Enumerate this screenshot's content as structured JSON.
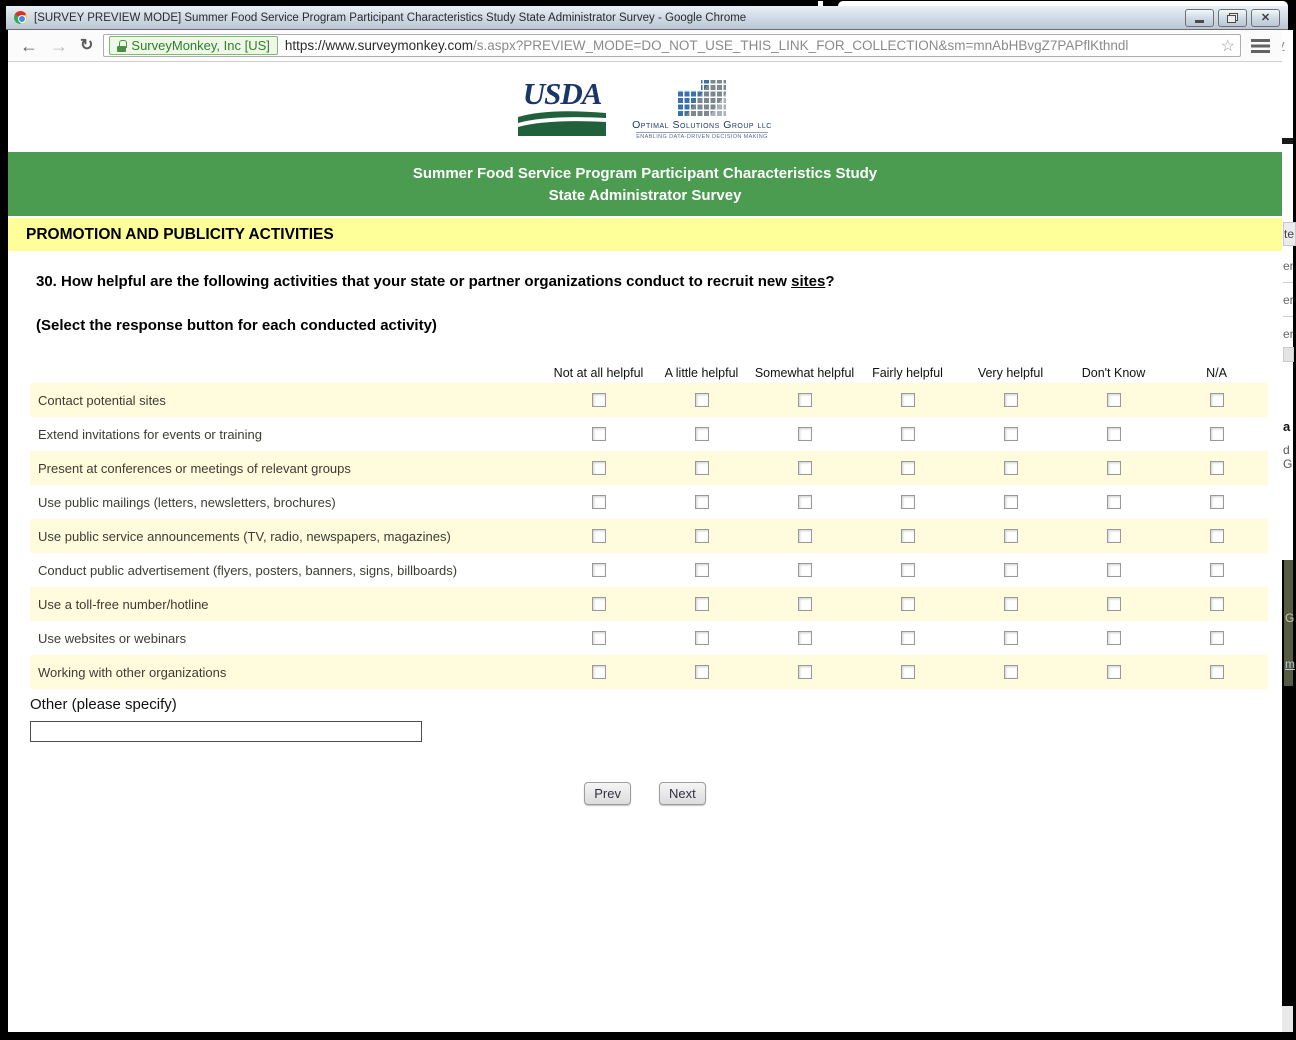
{
  "window": {
    "title": "[SURVEY PREVIEW MODE] Summer Food Service Program Participant Characteristics Study State Administrator Survey - Google Chrome"
  },
  "browser": {
    "ev_badge": "SurveyMonkey, Inc [US]",
    "url_host": "https://www.surveymonkey.com",
    "url_path": "/s.aspx?PREVIEW_MODE=DO_NOT_USE_THIS_LINK_FOR_COLLECTION&sm=mnAbHBvgZ7PAPflKthndl"
  },
  "icons": {
    "back": "←",
    "forward": "→",
    "refresh": "↻",
    "star": "☆",
    "close": "✕"
  },
  "logos": {
    "usda": "USDA",
    "osg_name": "Optimal Solutions Group llc",
    "osg_tagline": "ENABLING DATA-DRIVEN DECISION MAKING"
  },
  "survey": {
    "banner_line1": "Summer Food Service Program Participant Characteristics Study",
    "banner_line2": "State Administrator Survey",
    "section_title": "PROMOTION AND PUBLICITY ACTIVITIES",
    "question_prefix": "30. How helpful are the following activities that your state or partner organizations conduct to recruit new ",
    "question_underlined": "sites",
    "question_suffix": "?",
    "instruction": "(Select the response button for each conducted activity)",
    "matrix": {
      "columns": [
        "Not at all helpful",
        "A little helpful",
        "Somewhat helpful",
        "Fairly helpful",
        "Very helpful",
        "Don't Know",
        "N/A"
      ],
      "rows": [
        "Contact potential sites",
        "Extend invitations for events or training",
        "Present at conferences or meetings of relevant groups",
        "Use public mailings (letters, newsletters, brochures)",
        "Use public service announcements (TV, radio, newspapers, magazines)",
        "Conduct public advertisement (flyers, posters, banners, signs, billboards)",
        "Use a toll-free number/hotline",
        "Use websites or webinars",
        "Working with other organizations"
      ],
      "checkbox_state": "unchecked"
    },
    "other_label": "Other (please specify)",
    "other_value": "",
    "prev_label": "Prev",
    "next_label": "Next"
  },
  "colors": {
    "banner_green": "#4B9B50",
    "section_yellow": "#FFFF99",
    "row_yellow": "#FFFBDC",
    "badge_green": "#2F7D2F"
  },
  "background_window": {
    "fragments": [
      "y",
      "te",
      "er",
      "er",
      "er",
      "a",
      "d",
      "G",
      "G",
      "m"
    ]
  }
}
